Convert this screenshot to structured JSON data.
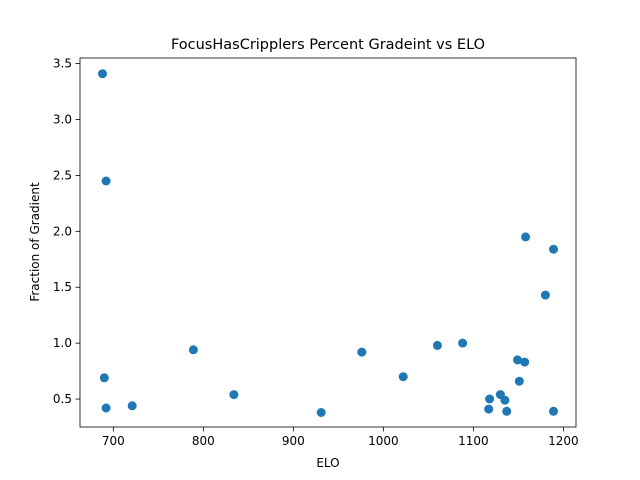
{
  "chart_data": {
    "type": "scatter",
    "title": "FocusHasCripplers Percent Gradeint vs ELO",
    "xlabel": "ELO",
    "ylabel": "Fraction of Gradient",
    "xlim": [
      663,
      1214
    ],
    "ylim": [
      0.25,
      3.55
    ],
    "xticks": [
      700,
      800,
      900,
      1000,
      1100,
      1200
    ],
    "yticks": [
      0.5,
      1.0,
      1.5,
      2.0,
      2.5,
      3.0,
      3.5
    ],
    "xtick_labels": [
      "700",
      "800",
      "900",
      "1000",
      "1100",
      "1200"
    ],
    "ytick_labels": [
      "0.5",
      "1.0",
      "1.5",
      "2.0",
      "2.5",
      "3.0",
      "3.5"
    ],
    "grid": false,
    "legend": "none",
    "marker_color": "#1f77b4",
    "points": [
      {
        "x": 688,
        "y": 3.41
      },
      {
        "x": 692,
        "y": 2.45
      },
      {
        "x": 690,
        "y": 0.69
      },
      {
        "x": 692,
        "y": 0.42
      },
      {
        "x": 721,
        "y": 0.44
      },
      {
        "x": 789,
        "y": 0.94
      },
      {
        "x": 834,
        "y": 0.54
      },
      {
        "x": 931,
        "y": 0.38
      },
      {
        "x": 976,
        "y": 0.92
      },
      {
        "x": 1022,
        "y": 0.7
      },
      {
        "x": 1060,
        "y": 0.98
      },
      {
        "x": 1088,
        "y": 1.0
      },
      {
        "x": 1118,
        "y": 0.5
      },
      {
        "x": 1117,
        "y": 0.41
      },
      {
        "x": 1130,
        "y": 0.54
      },
      {
        "x": 1135,
        "y": 0.49
      },
      {
        "x": 1137,
        "y": 0.39
      },
      {
        "x": 1149,
        "y": 0.85
      },
      {
        "x": 1151,
        "y": 0.66
      },
      {
        "x": 1157,
        "y": 0.83
      },
      {
        "x": 1158,
        "y": 1.95
      },
      {
        "x": 1180,
        "y": 1.43
      },
      {
        "x": 1189,
        "y": 1.84
      },
      {
        "x": 1189,
        "y": 0.39
      }
    ]
  }
}
